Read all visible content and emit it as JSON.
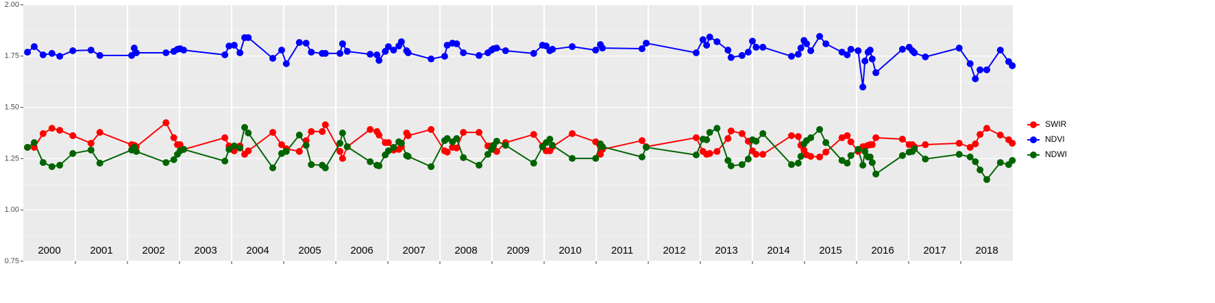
{
  "chart_data": {
    "type": "line",
    "x": [
      2000.08,
      2000.21,
      2000.38,
      2000.55,
      2000.7,
      2000.95,
      2001.3,
      2001.47,
      2002.08,
      2002.13,
      2002.17,
      2002.74,
      2002.89,
      2002.96,
      2003.01,
      2003.08,
      2003.87,
      2003.95,
      2004.05,
      2004.16,
      2004.25,
      2004.32,
      2004.79,
      2004.96,
      2005.05,
      2005.3,
      2005.43,
      2005.53,
      2005.74,
      2005.8,
      2006.08,
      2006.13,
      2006.22,
      2006.66,
      2006.79,
      2006.83,
      2006.95,
      2007.01,
      2007.11,
      2007.21,
      2007.26,
      2007.36,
      2007.39,
      2007.83,
      2008.09,
      2008.14,
      2008.24,
      2008.32,
      2008.45,
      2008.75,
      2008.92,
      2008.99,
      2009.03,
      2009.09,
      2009.26,
      2009.8,
      2009.97,
      2010.04,
      2010.11,
      2010.16,
      2010.54,
      2010.99,
      2011.08,
      2011.12,
      2011.88,
      2011.96,
      2012.92,
      2013.05,
      2013.12,
      2013.18,
      2013.32,
      2013.53,
      2013.59,
      2013.8,
      2013.92,
      2014.0,
      2014.07,
      2014.2,
      2014.75,
      2014.88,
      2014.93,
      2014.99,
      2015.04,
      2015.12,
      2015.29,
      2015.41,
      2015.72,
      2015.82,
      2015.89,
      2016.03,
      2016.12,
      2016.16,
      2016.22,
      2016.26,
      2016.3,
      2016.37,
      2016.88,
      2017.01,
      2017.07,
      2017.11,
      2017.32,
      2017.97,
      2018.18,
      2018.28,
      2018.37,
      2018.5,
      2018.76,
      2018.92,
      2018.99
    ],
    "series": [
      {
        "name": "SWIR",
        "color": "#ff0000",
        "values": [
          1.305,
          1.305,
          1.372,
          1.398,
          1.388,
          1.362,
          1.325,
          1.378,
          1.318,
          1.315,
          1.308,
          1.425,
          1.352,
          1.318,
          1.318,
          1.295,
          1.352,
          1.312,
          1.288,
          1.312,
          1.271,
          1.288,
          1.378,
          1.318,
          1.298,
          1.285,
          1.338,
          1.382,
          1.382,
          1.415,
          1.285,
          1.251,
          1.308,
          1.392,
          1.382,
          1.365,
          1.328,
          1.328,
          1.292,
          1.295,
          1.308,
          1.375,
          1.362,
          1.392,
          1.288,
          1.282,
          1.305,
          1.302,
          1.378,
          1.378,
          1.312,
          1.312,
          1.295,
          1.285,
          1.328,
          1.368,
          1.312,
          1.288,
          1.288,
          1.308,
          1.372,
          1.332,
          1.271,
          1.295,
          1.338,
          1.308,
          1.352,
          1.285,
          1.271,
          1.275,
          1.285,
          1.348,
          1.385,
          1.372,
          1.335,
          1.288,
          1.271,
          1.271,
          1.362,
          1.358,
          1.315,
          1.292,
          1.268,
          1.261,
          1.258,
          1.282,
          1.352,
          1.362,
          1.332,
          1.285,
          1.308,
          1.308,
          1.315,
          1.318,
          1.318,
          1.352,
          1.345,
          1.318,
          1.318,
          1.308,
          1.318,
          1.325,
          1.305,
          1.322,
          1.368,
          1.398,
          1.365,
          1.342,
          1.325
        ]
      },
      {
        "name": "NDVI",
        "color": "#0000ff",
        "values": [
          1.769,
          1.796,
          1.756,
          1.763,
          1.749,
          1.776,
          1.779,
          1.753,
          1.753,
          1.789,
          1.766,
          1.766,
          1.773,
          1.783,
          1.786,
          1.779,
          1.756,
          1.799,
          1.803,
          1.766,
          1.84,
          1.84,
          1.739,
          1.779,
          1.713,
          1.816,
          1.813,
          1.769,
          1.763,
          1.763,
          1.763,
          1.81,
          1.773,
          1.759,
          1.756,
          1.729,
          1.773,
          1.796,
          1.779,
          1.799,
          1.82,
          1.776,
          1.766,
          1.736,
          1.749,
          1.803,
          1.813,
          1.81,
          1.766,
          1.753,
          1.766,
          1.779,
          1.786,
          1.789,
          1.776,
          1.763,
          1.803,
          1.799,
          1.776,
          1.783,
          1.796,
          1.779,
          1.806,
          1.789,
          1.786,
          1.813,
          1.766,
          1.83,
          1.803,
          1.843,
          1.82,
          1.779,
          1.743,
          1.753,
          1.769,
          1.823,
          1.793,
          1.793,
          1.749,
          1.759,
          1.789,
          1.826,
          1.81,
          1.776,
          1.846,
          1.81,
          1.769,
          1.756,
          1.783,
          1.776,
          1.599,
          1.726,
          1.769,
          1.779,
          1.736,
          1.669,
          1.783,
          1.793,
          1.776,
          1.766,
          1.746,
          1.789,
          1.713,
          1.639,
          1.683,
          1.683,
          1.779,
          1.723,
          1.703
        ]
      },
      {
        "name": "NDWI",
        "color": "#006400",
        "values": [
          1.305,
          1.328,
          1.231,
          1.211,
          1.218,
          1.275,
          1.292,
          1.228,
          1.292,
          1.305,
          1.285,
          1.231,
          1.245,
          1.271,
          1.288,
          1.295,
          1.238,
          1.295,
          1.312,
          1.302,
          1.402,
          1.375,
          1.205,
          1.275,
          1.285,
          1.365,
          1.315,
          1.221,
          1.218,
          1.205,
          1.325,
          1.375,
          1.308,
          1.235,
          1.218,
          1.215,
          1.268,
          1.288,
          1.305,
          1.332,
          1.325,
          1.265,
          1.261,
          1.211,
          1.338,
          1.348,
          1.332,
          1.348,
          1.255,
          1.218,
          1.271,
          1.295,
          1.315,
          1.335,
          1.315,
          1.228,
          1.308,
          1.328,
          1.345,
          1.315,
          1.251,
          1.251,
          1.322,
          1.308,
          1.258,
          1.305,
          1.268,
          1.345,
          1.342,
          1.378,
          1.398,
          1.241,
          1.215,
          1.221,
          1.248,
          1.342,
          1.335,
          1.372,
          1.221,
          1.228,
          1.261,
          1.322,
          1.338,
          1.352,
          1.392,
          1.328,
          1.241,
          1.228,
          1.265,
          1.295,
          1.218,
          1.285,
          1.258,
          1.258,
          1.231,
          1.175,
          1.265,
          1.282,
          1.285,
          1.298,
          1.248,
          1.271,
          1.258,
          1.235,
          1.195,
          1.148,
          1.231,
          1.221,
          1.241
        ]
      }
    ],
    "xlim": [
      2000,
      2019
    ],
    "xticks": [
      2001,
      2002,
      2003,
      2004,
      2005,
      2006,
      2007,
      2008,
      2009,
      2010,
      2011,
      2012,
      2013,
      2014,
      2015,
      2016,
      2017,
      2018
    ],
    "year_labels": [
      2000,
      2001,
      2002,
      2003,
      2004,
      2005,
      2006,
      2007,
      2008,
      2009,
      2010,
      2011,
      2012,
      2013,
      2014,
      2015,
      2016,
      2017,
      2018
    ],
    "ylim": [
      0.75,
      2.0
    ],
    "yticks": [
      {
        "value": 0.75,
        "label": "0.75"
      },
      {
        "value": 1.0,
        "label": "1.00"
      },
      {
        "value": 1.25,
        "label": "1.25"
      },
      {
        "value": 1.5,
        "label": "1.50"
      },
      {
        "value": 1.75,
        "label": "1.75"
      },
      {
        "value": 2.0,
        "label": "2.00"
      }
    ],
    "grid": true,
    "legend": "right"
  }
}
